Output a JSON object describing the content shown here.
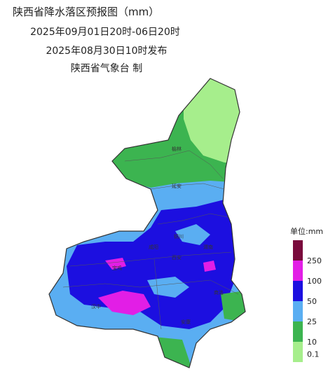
{
  "header": {
    "title": "陕西省降水落区预报图（mm）",
    "period": "2025年09月01日20时-06日20时",
    "issued": "2025年08月30日10时发布",
    "issuer": "陕西省气象台 制"
  },
  "cities": [
    "榆林",
    "延安",
    "铜川",
    "咸阳",
    "西安",
    "渭南",
    "宝鸡",
    "汉中",
    "安康",
    "商洛"
  ],
  "legend": {
    "unit": "单位:mm",
    "levels": [
      {
        "label": 250,
        "color": "#7a0a3c"
      },
      {
        "label": 100,
        "color": "#e21ee6"
      },
      {
        "label": 50,
        "color": "#1c0fe0"
      },
      {
        "label": 25,
        "color": "#5aaef2"
      },
      {
        "label": 10,
        "color": "#3cb450"
      },
      {
        "label": 0.1,
        "color": "#a6ee8c"
      }
    ]
  }
}
